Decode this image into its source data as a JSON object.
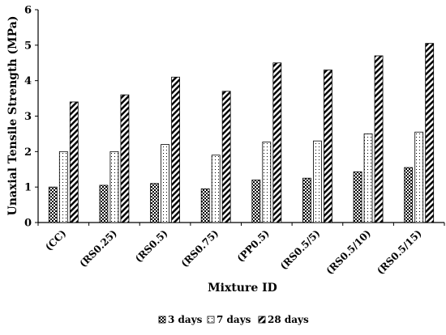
{
  "chart_data": {
    "type": "bar",
    "categories": [
      "(CC)",
      "(RS0.25)",
      "(RS0.5)",
      "(RS0.75)",
      "(PP0.5)",
      "(RS0.5/5)",
      "(RS0.5/10)",
      "(RS0.5/15)"
    ],
    "series": [
      {
        "name": "3 days",
        "pattern": "checker",
        "values": [
          1.0,
          1.05,
          1.1,
          0.95,
          1.2,
          1.25,
          1.43,
          1.55
        ]
      },
      {
        "name": "7 days",
        "pattern": "dots",
        "values": [
          2.0,
          2.0,
          2.2,
          1.9,
          2.27,
          2.3,
          2.5,
          2.55
        ]
      },
      {
        "name": "28 days",
        "pattern": "diagonal-stripes",
        "values": [
          3.4,
          3.6,
          4.1,
          3.7,
          4.5,
          4.3,
          4.7,
          5.05
        ]
      }
    ],
    "xlabel": "Mixture ID",
    "ylabel": "Unaxial Tensile Strength (MPa)",
    "ylim": [
      0,
      6
    ],
    "yticks": [
      "0",
      "1",
      "2",
      "3",
      "4",
      "5",
      "6"
    ],
    "grid": false,
    "legend_position": "bottom"
  }
}
